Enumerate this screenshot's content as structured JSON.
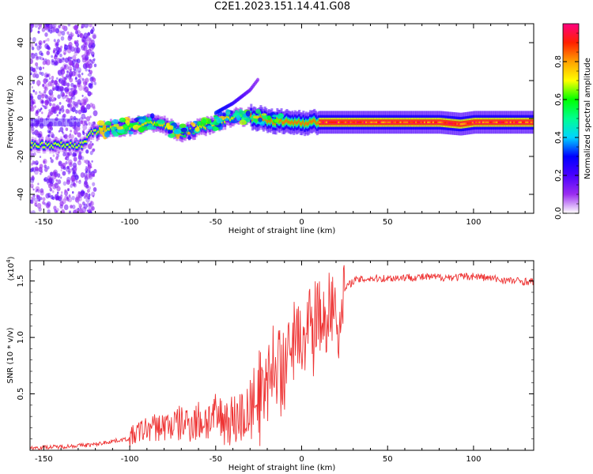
{
  "title": "C2E1.2023.151.14.41.G08",
  "chart_data": [
    {
      "type": "heatmap",
      "xlabel": "Height of straight line (km)",
      "ylabel": "Frequency (Hz)",
      "xlim": [
        -158,
        135
      ],
      "ylim": [
        -50,
        50
      ],
      "xticks": [
        -150,
        -100,
        -50,
        0,
        50,
        100
      ],
      "yticks": [
        -40,
        -20,
        0,
        20,
        40
      ],
      "colorbar": {
        "label": "Normalized spectral amplitude",
        "range": [
          0,
          1
        ],
        "ticks": [
          "0.0",
          "0.2",
          "0.4",
          "0.6",
          "0.8"
        ],
        "colors": [
          "#ffffff",
          "#9b2df0",
          "#4a00ff",
          "#0000ff",
          "#00d4ff",
          "#00ff90",
          "#00ff00",
          "#ffff00",
          "#ffa000",
          "#ff2000",
          "#ff0080"
        ]
      },
      "ridge": {
        "x": [
          -158,
          -140,
          -128,
          -122,
          -115,
          -100,
          -85,
          -70,
          -60,
          -50,
          -40,
          -30,
          -20,
          -10,
          0,
          20,
          50,
          80,
          92,
          100,
          135
        ],
        "y": [
          -14,
          -14,
          -14,
          -7,
          -6,
          -4,
          -2,
          -8,
          -5,
          -2,
          1,
          1,
          -1,
          -2,
          -2,
          -2,
          -2,
          -2,
          -3,
          -2,
          -2
        ]
      },
      "secondary_track": {
        "x": [
          -158,
          -140,
          -130
        ],
        "y": [
          -4,
          -4,
          -4
        ]
      },
      "spur": {
        "x": [
          -50,
          -40,
          -30,
          -25
        ],
        "y": [
          3,
          8,
          15,
          21
        ]
      }
    },
    {
      "type": "line",
      "xlabel": "Height of straight line (km)",
      "ylabel": "SNR (10 * v/v)",
      "y_multiplier": "(x10^4)",
      "xlim": [
        -158,
        135
      ],
      "ylim": [
        0,
        1.68
      ],
      "xticks": [
        -150,
        -100,
        -50,
        0,
        50,
        100
      ],
      "yticks": [
        0.5,
        1.0,
        1.5
      ],
      "ytick_labels": [
        "0.5",
        "1.0",
        "1.5"
      ],
      "color": "#ee3333",
      "series": [
        {
          "x": [
            -158,
            -140,
            -120,
            -110,
            -100,
            -95,
            -90,
            -80,
            -70,
            -60,
            -50,
            -40,
            -30,
            -25,
            -20,
            -15,
            -10,
            -5,
            0,
            5,
            10,
            15,
            20,
            25,
            30,
            40,
            50,
            60,
            70,
            80,
            90,
            100,
            110,
            120,
            135
          ],
          "y": [
            0.02,
            0.03,
            0.05,
            0.08,
            0.1,
            0.15,
            0.18,
            0.2,
            0.22,
            0.24,
            0.26,
            0.25,
            0.3,
            0.55,
            0.7,
            0.8,
            0.9,
            1.0,
            1.08,
            1.12,
            1.18,
            1.25,
            1.32,
            1.42,
            1.5,
            1.52,
            1.52,
            1.53,
            1.53,
            1.53,
            1.53,
            1.54,
            1.52,
            1.5,
            1.49
          ]
        }
      ]
    }
  ]
}
